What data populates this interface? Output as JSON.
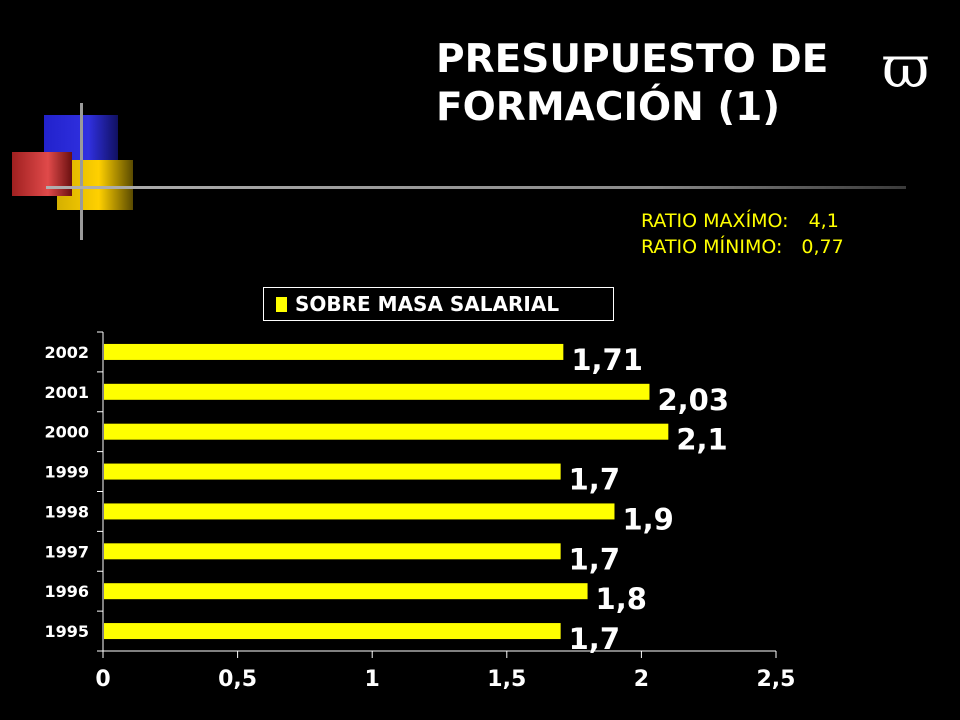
{
  "header": {
    "title_line1": "PRESUPUESTO DE",
    "title_line2": "FORMACIÓN (1)",
    "symbol": "ϖ"
  },
  "ratios": {
    "max_label": "RATIO MAXÍMO:",
    "max_value": "4,1",
    "min_label": "RATIO MÍNIMO:",
    "min_value": "0,77"
  },
  "colors": {
    "background": "#000000",
    "bar": "#ffff00",
    "text": "#ffffff",
    "ratio_text": "#ffff00"
  },
  "chart_data": {
    "type": "bar",
    "orientation": "horizontal",
    "categories": [
      "2002",
      "2001",
      "2000",
      "1999",
      "1998",
      "1997",
      "1996",
      "1995"
    ],
    "series": [
      {
        "name": "SOBRE MASA SALARIAL",
        "values": [
          1.71,
          2.03,
          2.1,
          1.7,
          1.9,
          1.7,
          1.8,
          1.7
        ],
        "labels": [
          "1,71",
          "2,03",
          "2,1",
          "1,7",
          "1,9",
          "1,7",
          "1,8",
          "1,7"
        ]
      }
    ],
    "xlim": [
      0,
      2.5
    ],
    "xticks": [
      0,
      0.5,
      1,
      1.5,
      2,
      2.5
    ],
    "xtick_labels": [
      "0",
      "0,5",
      "1",
      "1,5",
      "2",
      "2,5"
    ],
    "legend_position": "top",
    "grid": false
  }
}
